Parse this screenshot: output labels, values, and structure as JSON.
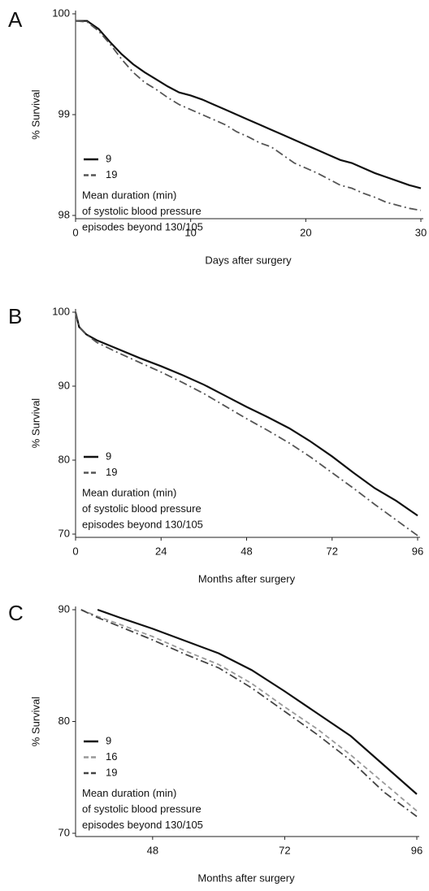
{
  "chart_data": [
    {
      "type": "line",
      "panel": "A",
      "xlabel": "Days after surgery",
      "ylabel": "% Survival",
      "x": [
        0,
        1,
        2,
        3,
        4,
        5,
        6,
        7,
        8,
        9,
        10,
        11,
        12,
        13,
        14,
        15,
        16,
        17,
        18,
        19,
        20,
        21,
        22,
        23,
        24,
        25,
        26,
        27,
        28,
        29,
        30
      ],
      "series": [
        {
          "name": "9",
          "color": "#111111",
          "dash": "solid",
          "values": [
            99.93,
            99.93,
            99.85,
            99.72,
            99.6,
            99.5,
            99.42,
            99.35,
            99.28,
            99.22,
            99.19,
            99.15,
            99.1,
            99.05,
            99.0,
            98.95,
            98.9,
            98.85,
            98.8,
            98.75,
            98.7,
            98.65,
            98.6,
            98.55,
            98.52,
            98.47,
            98.42,
            98.38,
            98.34,
            98.3,
            98.27
          ]
        },
        {
          "name": "19",
          "color": "#555555",
          "dash": "dashdot",
          "values": [
            99.93,
            99.92,
            99.83,
            99.7,
            99.55,
            99.42,
            99.32,
            99.25,
            99.17,
            99.1,
            99.05,
            99.0,
            98.95,
            98.9,
            98.83,
            98.78,
            98.72,
            98.68,
            98.6,
            98.52,
            98.47,
            98.42,
            98.36,
            98.3,
            98.27,
            98.22,
            98.18,
            98.13,
            98.1,
            98.07,
            98.05
          ]
        }
      ],
      "legend_title": [
        "Mean duration (min)",
        "of systolic blood pressure",
        "episodes beyond 130/105"
      ],
      "xlim": [
        0,
        30
      ],
      "xticks": [
        0,
        10,
        20,
        30
      ],
      "ylim": [
        98,
        100
      ],
      "yticks": [
        100,
        99,
        98
      ]
    },
    {
      "type": "line",
      "panel": "B",
      "xlabel": "Months after surgery",
      "ylabel": "% Survival",
      "x": [
        0,
        1,
        3,
        6,
        12,
        18,
        24,
        30,
        36,
        42,
        48,
        54,
        60,
        66,
        72,
        78,
        84,
        90,
        96
      ],
      "series": [
        {
          "name": "9",
          "color": "#111111",
          "dash": "solid",
          "values": [
            100,
            98,
            97,
            96.2,
            95,
            93.8,
            92.7,
            91.5,
            90.2,
            88.7,
            87.2,
            85.8,
            84.3,
            82.5,
            80.5,
            78.3,
            76.2,
            74.5,
            72.5
          ]
        },
        {
          "name": "19",
          "color": "#555555",
          "dash": "dashdot",
          "values": [
            100,
            98,
            97,
            95.9,
            94.5,
            93.2,
            91.9,
            90.5,
            89,
            87.3,
            85.6,
            84,
            82.3,
            80.4,
            78.3,
            76.2,
            74,
            71.9,
            69.8
          ]
        }
      ],
      "legend_title": [
        "Mean duration (min)",
        "of systolic blood pressure",
        "episodes beyond 130/105"
      ],
      "xlim": [
        0,
        96
      ],
      "xticks": [
        0,
        24,
        48,
        72,
        96
      ],
      "ylim": [
        70,
        100
      ],
      "yticks": [
        100,
        90,
        80,
        70
      ]
    },
    {
      "type": "line",
      "panel": "C",
      "xlabel": "Months after surgery",
      "ylabel": "% Survival",
      "x": [
        35,
        38,
        42,
        48,
        54,
        60,
        66,
        72,
        78,
        84,
        90,
        96
      ],
      "series": [
        {
          "name": "9",
          "color": "#111111",
          "dash": "solid",
          "values": [
            null,
            90,
            89.3,
            88.3,
            87.2,
            86.1,
            84.6,
            82.7,
            80.7,
            78.7,
            76.1,
            73.5
          ]
        },
        {
          "name": "16",
          "color": "#999999",
          "dash": "dashed",
          "values": [
            90,
            89.4,
            88.7,
            87.6,
            86.3,
            85.1,
            83.4,
            81.3,
            79.3,
            77,
            74.5,
            72
          ]
        },
        {
          "name": "19",
          "color": "#444444",
          "dash": "dashdot",
          "values": [
            90,
            89.3,
            88.5,
            87.3,
            86,
            84.8,
            83,
            80.9,
            78.8,
            76.5,
            73.7,
            71.5
          ]
        }
      ],
      "legend_title": [
        "Mean duration (min)",
        "of systolic blood pressure",
        "episodes beyond 130/105"
      ],
      "xlim": [
        34,
        96
      ],
      "xticks": [
        48,
        72,
        96
      ],
      "ylim": [
        70,
        90
      ],
      "yticks": [
        90,
        80,
        70
      ]
    }
  ]
}
